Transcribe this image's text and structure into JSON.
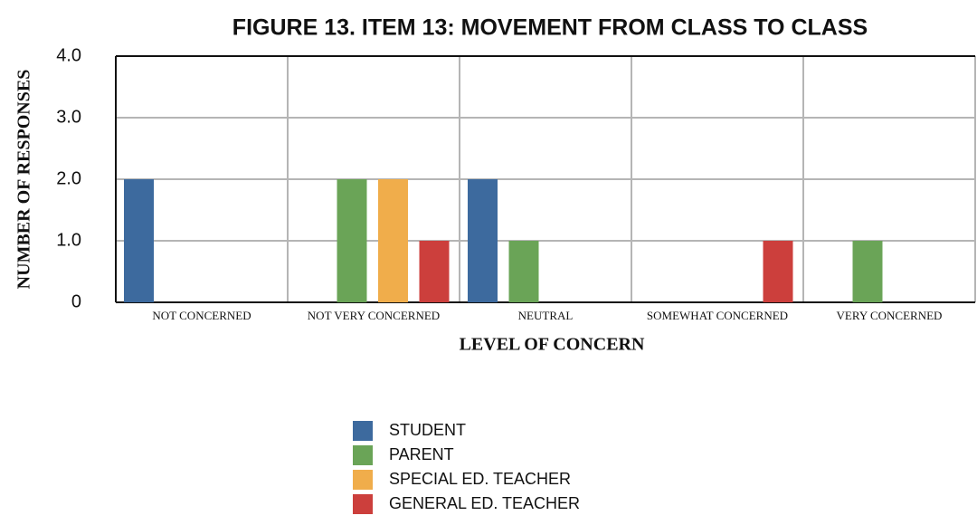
{
  "chart_data": {
    "type": "bar",
    "title": "FIGURE 13. ITEM 13: MOVEMENT FROM CLASS TO CLASS",
    "x_label": "LEVEL OF CONCERN",
    "y_label": "NUMBER OF RESPONSES",
    "categories": [
      "NOT CONCERNED",
      "NOT VERY CONCERNED",
      "NEUTRAL",
      "SOMEWHAT CONCERNED",
      "VERY CONCERNED"
    ],
    "series": [
      {
        "name": "STUDENT",
        "color": "#3d6a9e",
        "values": [
          2,
          0,
          2,
          0,
          0
        ]
      },
      {
        "name": "PARENT",
        "color": "#6aa457",
        "values": [
          0,
          2,
          1,
          0,
          1
        ]
      },
      {
        "name": "SPECIAL ED. TEACHER",
        "color": "#f0ad4b",
        "values": [
          0,
          2,
          0,
          0,
          0
        ]
      },
      {
        "name": "GENERAL ED. TEACHER",
        "color": "#cc3f3c",
        "values": [
          0,
          1,
          0,
          1,
          0
        ]
      }
    ],
    "ylim": [
      0,
      4
    ],
    "yticks": [
      0,
      {
        "value": 1,
        "label": "1.0"
      },
      {
        "value": 2,
        "label": "2.0"
      },
      {
        "value": 3,
        "label": "3.0"
      },
      {
        "value": 4,
        "label": "4.0"
      }
    ],
    "grid": true,
    "legend": "bottom"
  }
}
